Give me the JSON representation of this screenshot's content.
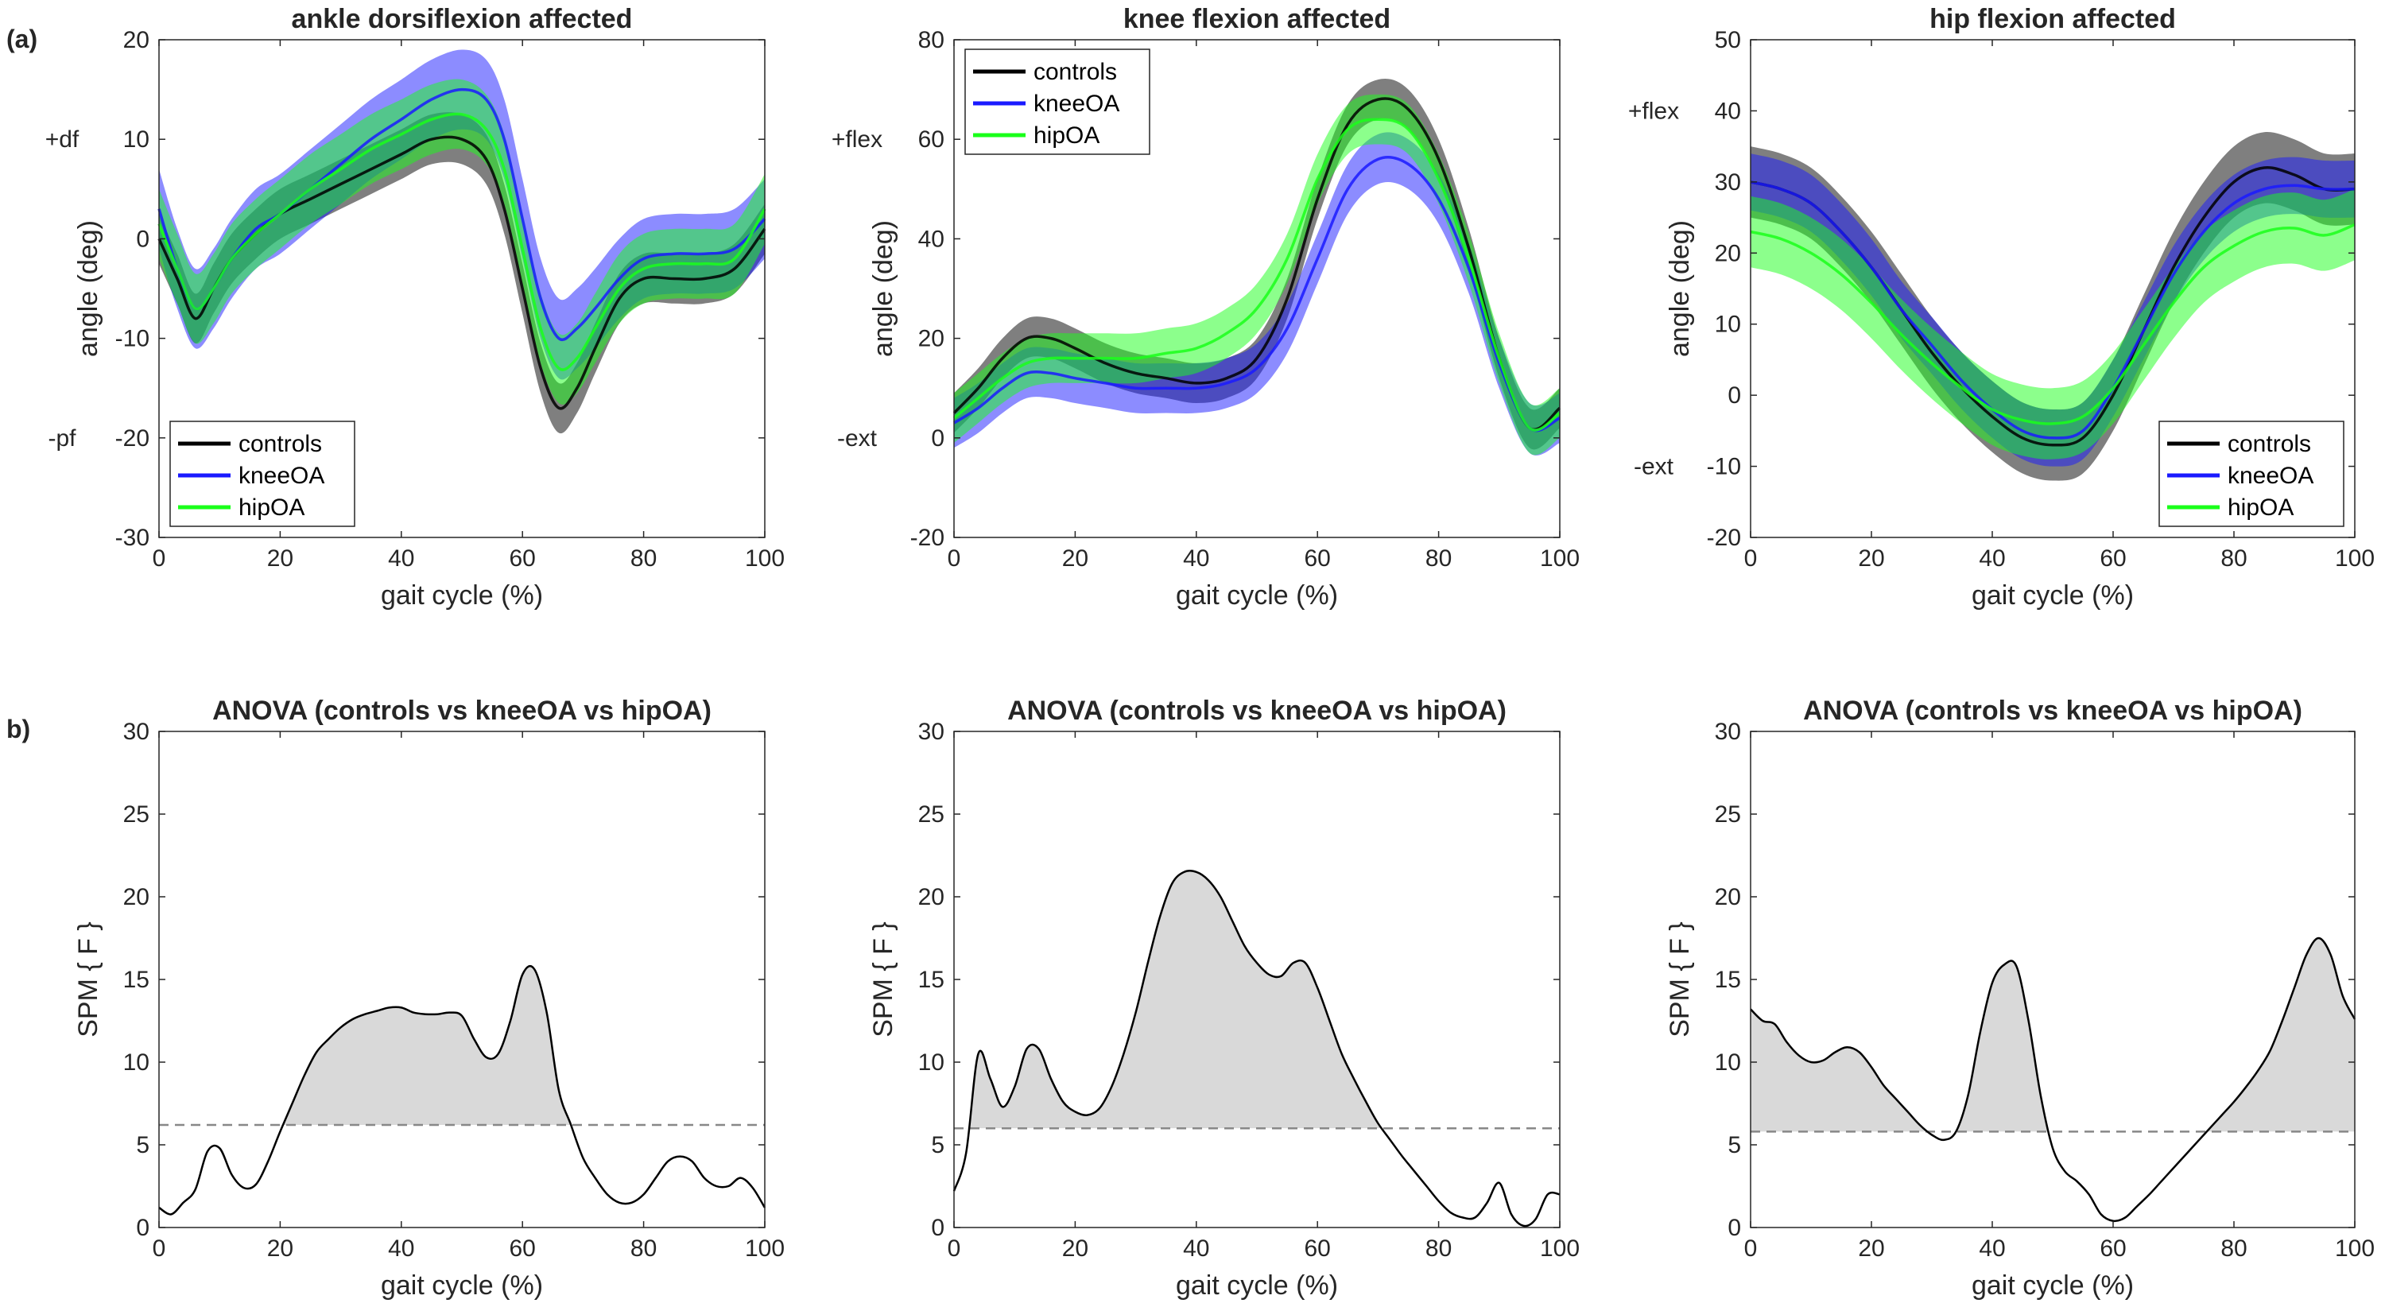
{
  "figure": {
    "panel_labels": [
      "(a)",
      "b)"
    ],
    "colors": {
      "controls": "#000000",
      "kneeOA": "#1a1aff",
      "hipOA": "#1aff1a",
      "threshold": "#888888",
      "suprathreshold_fill": "#d9d9d9"
    }
  },
  "chart_data": [
    {
      "type": "line",
      "title": "ankle dorsiflexion affected",
      "xlabel": "gait cycle (%)",
      "ylabel": "angle (deg)",
      "direction_labels": {
        "top": "+df",
        "bottom": "-pf"
      },
      "xlim": [
        0,
        100
      ],
      "ylim": [
        -30,
        20
      ],
      "xticks": [
        0,
        20,
        40,
        60,
        80,
        100
      ],
      "yticks": [
        -30,
        -20,
        -10,
        0,
        10,
        20
      ],
      "legend": {
        "location": "bottom-left",
        "entries": [
          "controls",
          "kneeOA",
          "hipOA"
        ]
      },
      "x": [
        0,
        3,
        6,
        9,
        12,
        16,
        20,
        25,
        30,
        35,
        40,
        45,
        50,
        54,
        57,
        60,
        63,
        66,
        69,
        72,
        76,
        80,
        85,
        90,
        95,
        100
      ],
      "series": [
        {
          "name": "controls",
          "mean": [
            0,
            -4,
            -8,
            -5,
            -2,
            0.5,
            2.5,
            4,
            5.5,
            7,
            8.5,
            10,
            10,
            8,
            3,
            -5,
            -13,
            -17,
            -15,
            -11,
            -6,
            -4,
            -4,
            -4,
            -3,
            1
          ],
          "band": 2.5
        },
        {
          "name": "kneeOA",
          "mean": [
            3,
            -3,
            -7,
            -5,
            -2,
            1,
            2.5,
            5,
            7.5,
            10,
            12,
            14,
            15,
            14,
            10,
            2,
            -6,
            -10,
            -9,
            -7,
            -4,
            -2,
            -1.5,
            -1.5,
            -1,
            2
          ],
          "band": 4
        },
        {
          "name": "hipOA",
          "mean": [
            1.5,
            -3,
            -7,
            -5,
            -2,
            0.5,
            2.5,
            5,
            7,
            9,
            10.5,
            12,
            12.5,
            11,
            7,
            -1,
            -9,
            -13,
            -12,
            -9,
            -5,
            -3,
            -2.5,
            -2.5,
            -2,
            3
          ],
          "band": 3.5
        }
      ]
    },
    {
      "type": "line",
      "title": "knee flexion affected",
      "xlabel": "gait cycle (%)",
      "ylabel": "angle (deg)",
      "direction_labels": {
        "top": "+flex",
        "bottom": "-ext"
      },
      "xlim": [
        0,
        100
      ],
      "ylim": [
        -20,
        80
      ],
      "xticks": [
        0,
        20,
        40,
        60,
        80,
        100
      ],
      "yticks": [
        -20,
        0,
        20,
        40,
        60,
        80
      ],
      "legend": {
        "location": "top-left",
        "entries": [
          "controls",
          "kneeOA",
          "hipOA"
        ]
      },
      "x": [
        0,
        4,
        8,
        12,
        16,
        20,
        25,
        30,
        35,
        40,
        45,
        50,
        55,
        60,
        65,
        70,
        75,
        80,
        85,
        90,
        95,
        100
      ],
      "series": [
        {
          "name": "controls",
          "mean": [
            5,
            10,
            16,
            20,
            20,
            18,
            15,
            13,
            12,
            11,
            12,
            16,
            28,
            48,
            63,
            68,
            66,
            56,
            38,
            16,
            2,
            6
          ],
          "band": 4
        },
        {
          "name": "kneeOA",
          "mean": [
            3,
            6,
            10,
            13,
            13,
            12,
            11,
            10,
            10,
            10,
            11,
            14,
            22,
            36,
            50,
            56,
            55,
            48,
            34,
            15,
            2,
            4
          ],
          "band": 5
        },
        {
          "name": "hipOA",
          "mean": [
            4,
            8,
            12,
            15,
            16,
            16,
            16,
            16,
            17,
            18,
            21,
            26,
            36,
            52,
            62,
            64,
            62,
            52,
            36,
            16,
            2,
            5
          ],
          "band": 5
        }
      ]
    },
    {
      "type": "line",
      "title": "hip flexion affected",
      "xlabel": "gait cycle (%)",
      "ylabel": "angle (deg)",
      "direction_labels": {
        "top": "+flex",
        "bottom": "-ext"
      },
      "xlim": [
        0,
        100
      ],
      "ylim": [
        -20,
        50
      ],
      "xticks": [
        0,
        20,
        40,
        60,
        80,
        100
      ],
      "yticks": [
        -20,
        -10,
        0,
        10,
        20,
        30,
        40,
        50
      ],
      "legend": {
        "location": "bottom-right",
        "entries": [
          "controls",
          "kneeOA",
          "hipOA"
        ]
      },
      "x": [
        0,
        5,
        10,
        15,
        20,
        25,
        30,
        35,
        40,
        45,
        50,
        55,
        60,
        65,
        70,
        75,
        80,
        85,
        90,
        95,
        100
      ],
      "series": [
        {
          "name": "controls",
          "mean": [
            30,
            29,
            27,
            23,
            18,
            12,
            6,
            1,
            -3,
            -6,
            -7,
            -6,
            0,
            9,
            18,
            25,
            30,
            32,
            31,
            29,
            29
          ],
          "band": 5
        },
        {
          "name": "kneeOA",
          "mean": [
            30,
            29,
            27,
            23,
            18,
            12,
            7,
            2,
            -2,
            -5,
            -6,
            -5,
            1,
            9,
            17,
            23,
            27,
            29,
            29.5,
            29,
            29
          ],
          "band": 4
        },
        {
          "name": "hipOA",
          "mean": [
            23,
            22,
            20,
            17,
            13,
            8.5,
            4.5,
            1,
            -2,
            -3.5,
            -4,
            -3,
            1,
            7,
            13,
            18,
            21,
            23,
            23.5,
            22.5,
            24
          ],
          "band": 5
        }
      ]
    },
    {
      "type": "area",
      "title": "ANOVA (controls vs kneeOA vs hipOA)",
      "xlabel": "gait cycle (%)",
      "ylabel": "SPM { F }",
      "xlim": [
        0,
        100
      ],
      "ylim": [
        0,
        30
      ],
      "xticks": [
        0,
        20,
        40,
        60,
        80,
        100
      ],
      "yticks": [
        0,
        5,
        10,
        15,
        20,
        25,
        30
      ],
      "threshold": 6.2,
      "x": [
        0,
        2,
        4,
        6,
        8,
        10,
        12,
        14,
        16,
        18,
        20,
        22,
        24,
        26,
        28,
        30,
        32,
        34,
        36,
        38,
        40,
        42,
        44,
        46,
        48,
        50,
        52,
        54,
        56,
        58,
        60,
        62,
        64,
        66,
        68,
        70,
        72,
        74,
        76,
        78,
        80,
        82,
        84,
        86,
        88,
        90,
        92,
        94,
        96,
        98,
        100
      ],
      "values": [
        1.2,
        0.8,
        1.5,
        2.3,
        4.6,
        4.8,
        3.2,
        2.4,
        2.6,
        4.0,
        5.8,
        7.5,
        9.2,
        10.6,
        11.4,
        12.1,
        12.6,
        12.9,
        13.1,
        13.3,
        13.3,
        13.0,
        12.9,
        12.9,
        13.0,
        12.8,
        11.4,
        10.3,
        10.5,
        12.5,
        15.3,
        15.6,
        13.0,
        8.3,
        6.2,
        4.2,
        3.0,
        2.0,
        1.5,
        1.5,
        2.0,
        3.0,
        4.0,
        4.3,
        4.0,
        3.0,
        2.5,
        2.5,
        3.0,
        2.4,
        1.2
      ]
    },
    {
      "type": "area",
      "title": "ANOVA (controls vs kneeOA vs hipOA)",
      "xlabel": "gait cycle (%)",
      "ylabel": "SPM { F }",
      "xlim": [
        0,
        100
      ],
      "ylim": [
        0,
        30
      ],
      "xticks": [
        0,
        20,
        40,
        60,
        80,
        100
      ],
      "yticks": [
        0,
        5,
        10,
        15,
        20,
        25,
        30
      ],
      "threshold": 6.0,
      "x": [
        0,
        2,
        4,
        6,
        8,
        10,
        12,
        14,
        16,
        18,
        20,
        22,
        24,
        26,
        28,
        30,
        32,
        34,
        36,
        38,
        40,
        42,
        44,
        46,
        48,
        50,
        52,
        54,
        56,
        58,
        60,
        62,
        64,
        66,
        68,
        70,
        72,
        74,
        76,
        78,
        80,
        82,
        84,
        86,
        88,
        90,
        92,
        94,
        96,
        98,
        100
      ],
      "values": [
        2.2,
        4.5,
        10.5,
        9.0,
        7.3,
        8.5,
        10.8,
        10.8,
        9.0,
        7.6,
        7.0,
        6.8,
        7.2,
        8.5,
        10.5,
        13.0,
        16.0,
        18.8,
        20.8,
        21.5,
        21.5,
        21.0,
        20.0,
        18.5,
        17.0,
        16.0,
        15.3,
        15.2,
        16.0,
        16.0,
        14.5,
        12.5,
        10.5,
        9.0,
        7.6,
        6.3,
        5.3,
        4.3,
        3.4,
        2.5,
        1.6,
        0.9,
        0.6,
        0.6,
        1.5,
        2.7,
        0.8,
        0.1,
        0.5,
        2.0,
        2.0
      ]
    },
    {
      "type": "area",
      "title": "ANOVA (controls vs kneeOA vs hipOA)",
      "xlabel": "gait cycle (%)",
      "ylabel": "SPM { F }",
      "xlim": [
        0,
        100
      ],
      "ylim": [
        0,
        30
      ],
      "xticks": [
        0,
        20,
        40,
        60,
        80,
        100
      ],
      "yticks": [
        0,
        5,
        10,
        15,
        20,
        25,
        30
      ],
      "threshold": 5.8,
      "x": [
        0,
        2,
        4,
        6,
        8,
        10,
        12,
        14,
        16,
        18,
        20,
        22,
        24,
        26,
        28,
        30,
        32,
        34,
        36,
        38,
        40,
        42,
        44,
        46,
        48,
        50,
        52,
        54,
        56,
        58,
        60,
        62,
        64,
        66,
        68,
        70,
        72,
        74,
        76,
        78,
        80,
        82,
        84,
        86,
        88,
        90,
        92,
        94,
        96,
        98,
        100
      ],
      "values": [
        13.2,
        12.5,
        12.3,
        11.2,
        10.4,
        10.0,
        10.1,
        10.6,
        10.9,
        10.6,
        9.7,
        8.6,
        7.8,
        7.0,
        6.2,
        5.6,
        5.3,
        5.8,
        8.0,
        11.8,
        14.8,
        15.9,
        15.8,
        12.5,
        8.0,
        4.8,
        3.4,
        2.8,
        2.0,
        0.8,
        0.4,
        0.6,
        1.3,
        2.0,
        2.8,
        3.6,
        4.4,
        5.2,
        6.0,
        6.8,
        7.6,
        8.5,
        9.5,
        10.7,
        12.5,
        14.5,
        16.5,
        17.5,
        16.5,
        14.0,
        12.6
      ]
    }
  ]
}
